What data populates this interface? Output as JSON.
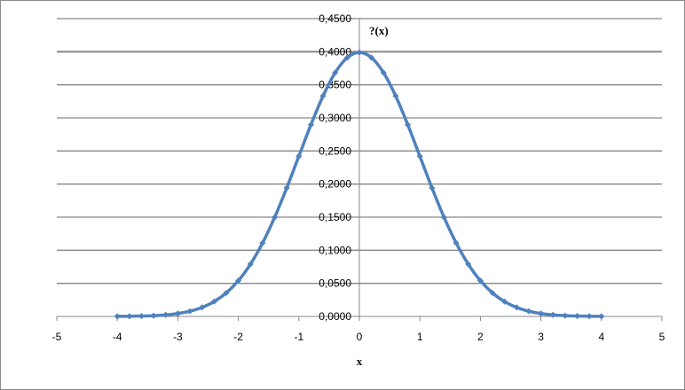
{
  "chart_data": {
    "type": "line",
    "title": "",
    "xlabel": "x",
    "ylabel": "?(x)",
    "xlim": [
      -5,
      5
    ],
    "ylim": [
      0,
      0.45
    ],
    "x_ticks": [
      "-5",
      "-4",
      "-3",
      "-2",
      "-1",
      "0",
      "1",
      "2",
      "3",
      "4",
      "5"
    ],
    "y_ticks": [
      "0,0000",
      "0,0500",
      "0,1000",
      "0,1500",
      "0,2000",
      "0,2500",
      "0,3000",
      "0,3500",
      "0,4000",
      "0,4500"
    ],
    "grid": "horizontal",
    "legend": "none",
    "colors": {
      "series": "#4f81bd",
      "grid": "#878787",
      "axis": "#878787"
    },
    "series": [
      {
        "x": [
          -4.0,
          -3.8,
          -3.6,
          -3.4,
          -3.2,
          -3.0,
          -2.8,
          -2.6,
          -2.4,
          -2.2,
          -2.0,
          -1.8,
          -1.6,
          -1.4,
          -1.2,
          -1.0,
          -0.8,
          -0.6,
          -0.4,
          -0.2,
          0.0,
          0.2,
          0.4,
          0.6,
          0.8,
          1.0,
          1.2,
          1.4,
          1.6,
          1.8,
          2.0,
          2.2,
          2.4,
          2.6,
          2.8,
          3.0,
          3.2,
          3.4,
          3.6,
          3.8,
          4.0
        ],
        "values": [
          0.0001,
          0.0003,
          0.0006,
          0.0012,
          0.0024,
          0.0044,
          0.0079,
          0.0136,
          0.0224,
          0.0355,
          0.054,
          0.079,
          0.1109,
          0.1497,
          0.1942,
          0.242,
          0.2897,
          0.3332,
          0.3683,
          0.391,
          0.3989,
          0.391,
          0.3683,
          0.3332,
          0.2897,
          0.242,
          0.1942,
          0.1497,
          0.1109,
          0.079,
          0.054,
          0.0355,
          0.0224,
          0.0136,
          0.0079,
          0.0044,
          0.0024,
          0.0012,
          0.0006,
          0.0003,
          0.0001
        ]
      }
    ]
  }
}
